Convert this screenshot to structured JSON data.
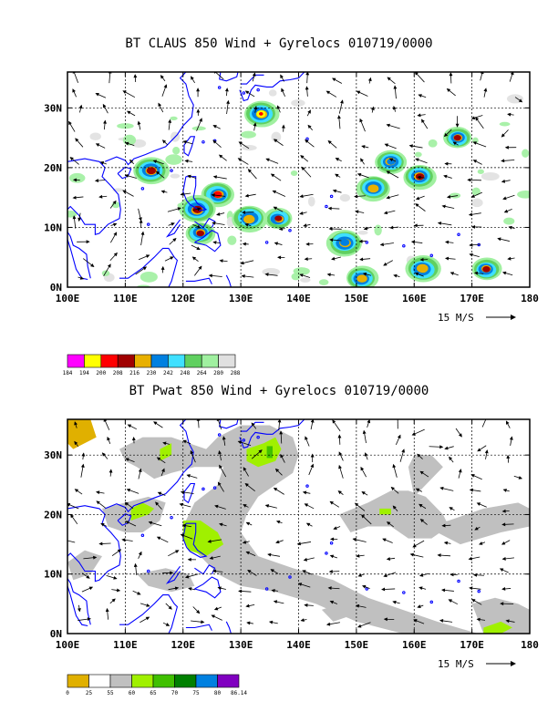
{
  "chart_data": [
    {
      "type": "heatmap",
      "title": "BT CLAUS 850 Wind + Gyrelocs 010719/0000",
      "x_ticks": [
        "100E",
        "110E",
        "120E",
        "130E",
        "140E",
        "150E",
        "160E",
        "170E",
        "180"
      ],
      "y_ticks": [
        "0N",
        "10N",
        "20N",
        "30N"
      ],
      "xlim": [
        100,
        180
      ],
      "ylim": [
        0,
        36
      ],
      "vector_key": "15 M/S",
      "colorbar": {
        "labels": [
          "184",
          "194",
          "200",
          "208",
          "216",
          "230",
          "242",
          "248",
          "264",
          "280",
          "288"
        ],
        "colors": [
          "#ff00ff",
          "#ffff00",
          "#ff0000",
          "#a00000",
          "#e8b000",
          "#0080e0",
          "#40e0ff",
          "#60d060",
          "#a0f0a0",
          "#e0e0e0"
        ]
      },
      "features": [
        {
          "lon": 133.5,
          "lat": 29.0,
          "core": "#ffff00"
        },
        {
          "lon": 126.0,
          "lat": 15.5,
          "core": "#ff0000"
        },
        {
          "lon": 122.5,
          "lat": 13.0,
          "core": "#a00000"
        },
        {
          "lon": 114.5,
          "lat": 19.5,
          "core": "#a00000"
        },
        {
          "lon": 123.0,
          "lat": 9.0,
          "core": "#a00000"
        },
        {
          "lon": 136.5,
          "lat": 11.5,
          "core": "#a00000"
        },
        {
          "lon": 131.5,
          "lat": 11.5,
          "core": "#e8b000"
        },
        {
          "lon": 153.0,
          "lat": 16.5,
          "core": "#e8b000"
        },
        {
          "lon": 161.0,
          "lat": 18.5,
          "core": "#a00000"
        },
        {
          "lon": 167.5,
          "lat": 25.0,
          "core": "#a00000"
        },
        {
          "lon": 172.5,
          "lat": 3.0,
          "core": "#a00000"
        },
        {
          "lon": 161.5,
          "lat": 3.0,
          "core": "#e8b000"
        },
        {
          "lon": 151.0,
          "lat": 1.5,
          "core": "#e8b000"
        },
        {
          "lon": 148.0,
          "lat": 7.5,
          "core": "#0080e0"
        },
        {
          "lon": 156.0,
          "lat": 21.0,
          "core": "#0080e0"
        }
      ]
    },
    {
      "type": "heatmap",
      "title": "BT Pwat 850 Wind + Gyrelocs 010719/0000",
      "x_ticks": [
        "100E",
        "110E",
        "120E",
        "130E",
        "140E",
        "150E",
        "160E",
        "170E",
        "180"
      ],
      "y_ticks": [
        "0N",
        "10N",
        "20N",
        "30N"
      ],
      "xlim": [
        100,
        180
      ],
      "ylim": [
        0,
        36
      ],
      "vector_key": "15 M/S",
      "colorbar": {
        "labels": [
          "0",
          "25",
          "55",
          "60",
          "65",
          "70",
          "75",
          "80",
          "86.14"
        ],
        "colors": [
          "#e0b000",
          "#ffffff",
          "#c0c0c0",
          "#a0f000",
          "#40c000",
          "#008000",
          "#0080e0",
          "#8000c0"
        ]
      }
    }
  ]
}
